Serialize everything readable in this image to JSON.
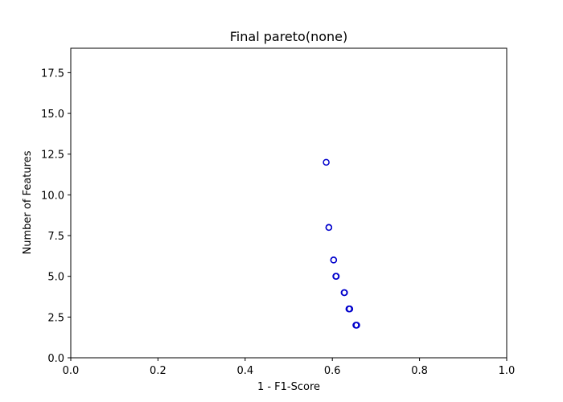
{
  "chart_data": {
    "type": "scatter",
    "title": "Final pareto(none)",
    "xlabel": "1 - F1-Score",
    "ylabel": "Number of Features",
    "xlim": [
      0.0,
      1.0
    ],
    "ylim": [
      0.0,
      19.0
    ],
    "xticks": [
      "0.0",
      "0.2",
      "0.4",
      "0.6",
      "0.8",
      "1.0"
    ],
    "yticks": [
      "0.0",
      "2.5",
      "5.0",
      "7.5",
      "10.0",
      "12.5",
      "15.0",
      "17.5"
    ],
    "grid": false,
    "marker": "hollow-circle",
    "marker_color": "#0000cc",
    "series": [
      {
        "x": [
          0.586,
          0.592,
          0.592,
          0.603,
          0.603,
          0.608,
          0.609,
          0.627,
          0.628,
          0.638,
          0.64,
          0.654,
          0.656
        ],
        "y": [
          12,
          8,
          8,
          6,
          6,
          5,
          5,
          4,
          4,
          3,
          3,
          2,
          2
        ]
      }
    ]
  }
}
